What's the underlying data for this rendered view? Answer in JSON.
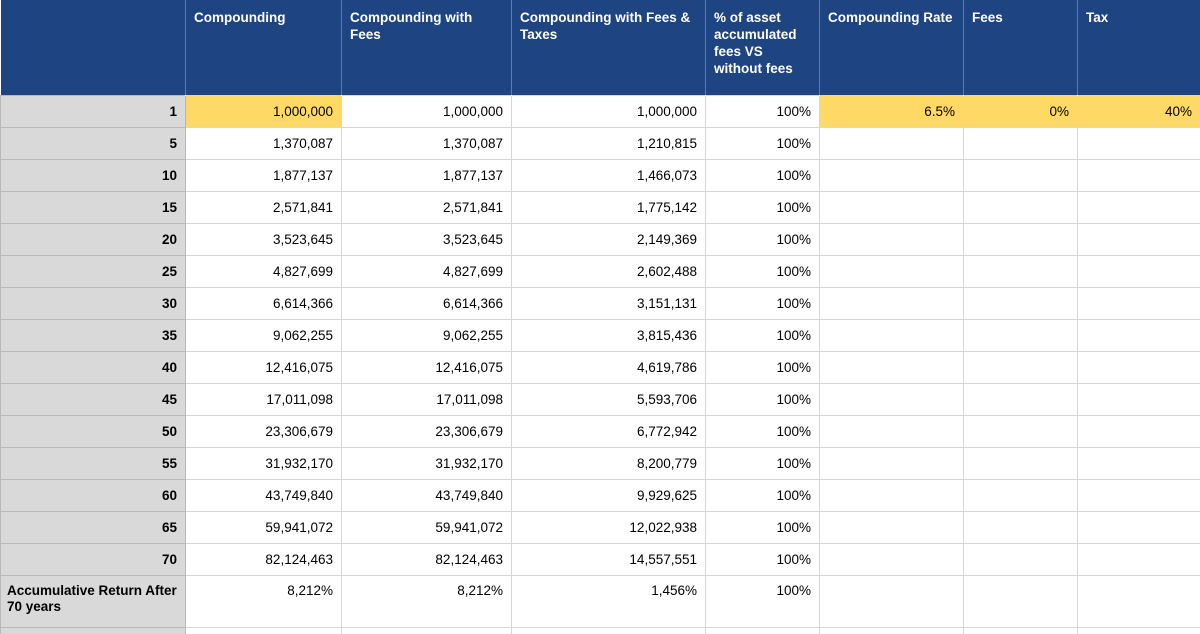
{
  "colors": {
    "header_bg": "#1E4482",
    "header_text": "#FFFFFF",
    "highlight_bg": "#FFD966",
    "row_label_bg": "#D9D9D9",
    "gridline": "#D6D6D6",
    "cell_text": "#000000"
  },
  "table": {
    "columns": [
      {
        "key": "year",
        "label": ""
      },
      {
        "key": "compounding",
        "label": "Compounding"
      },
      {
        "key": "with_fees",
        "label": "Compounding with Fees"
      },
      {
        "key": "with_fees_taxes",
        "label": "Compounding with Fees & Taxes"
      },
      {
        "key": "pct",
        "label": "% of asset accumulated fees VS without fees"
      },
      {
        "key": "rate",
        "label": "Compounding Rate"
      },
      {
        "key": "fees",
        "label": "Fees"
      },
      {
        "key": "tax",
        "label": "Tax"
      }
    ],
    "rows": [
      {
        "year": "1",
        "compounding": "1,000,000",
        "with_fees": "1,000,000",
        "with_fees_taxes": "1,000,000",
        "pct": "100%",
        "rate": "6.5%",
        "fees": "0%",
        "tax": "40%",
        "highlight_keys": [
          "compounding",
          "rate",
          "fees",
          "tax"
        ]
      },
      {
        "year": "5",
        "compounding": "1,370,087",
        "with_fees": "1,370,087",
        "with_fees_taxes": "1,210,815",
        "pct": "100%",
        "rate": "",
        "fees": "",
        "tax": ""
      },
      {
        "year": "10",
        "compounding": "1,877,137",
        "with_fees": "1,877,137",
        "with_fees_taxes": "1,466,073",
        "pct": "100%",
        "rate": "",
        "fees": "",
        "tax": ""
      },
      {
        "year": "15",
        "compounding": "2,571,841",
        "with_fees": "2,571,841",
        "with_fees_taxes": "1,775,142",
        "pct": "100%",
        "rate": "",
        "fees": "",
        "tax": ""
      },
      {
        "year": "20",
        "compounding": "3,523,645",
        "with_fees": "3,523,645",
        "with_fees_taxes": "2,149,369",
        "pct": "100%",
        "rate": "",
        "fees": "",
        "tax": ""
      },
      {
        "year": "25",
        "compounding": "4,827,699",
        "with_fees": "4,827,699",
        "with_fees_taxes": "2,602,488",
        "pct": "100%",
        "rate": "",
        "fees": "",
        "tax": ""
      },
      {
        "year": "30",
        "compounding": "6,614,366",
        "with_fees": "6,614,366",
        "with_fees_taxes": "3,151,131",
        "pct": "100%",
        "rate": "",
        "fees": "",
        "tax": ""
      },
      {
        "year": "35",
        "compounding": "9,062,255",
        "with_fees": "9,062,255",
        "with_fees_taxes": "3,815,436",
        "pct": "100%",
        "rate": "",
        "fees": "",
        "tax": ""
      },
      {
        "year": "40",
        "compounding": "12,416,075",
        "with_fees": "12,416,075",
        "with_fees_taxes": "4,619,786",
        "pct": "100%",
        "rate": "",
        "fees": "",
        "tax": ""
      },
      {
        "year": "45",
        "compounding": "17,011,098",
        "with_fees": "17,011,098",
        "with_fees_taxes": "5,593,706",
        "pct": "100%",
        "rate": "",
        "fees": "",
        "tax": ""
      },
      {
        "year": "50",
        "compounding": "23,306,679",
        "with_fees": "23,306,679",
        "with_fees_taxes": "6,772,942",
        "pct": "100%",
        "rate": "",
        "fees": "",
        "tax": ""
      },
      {
        "year": "55",
        "compounding": "31,932,170",
        "with_fees": "31,932,170",
        "with_fees_taxes": "8,200,779",
        "pct": "100%",
        "rate": "",
        "fees": "",
        "tax": ""
      },
      {
        "year": "60",
        "compounding": "43,749,840",
        "with_fees": "43,749,840",
        "with_fees_taxes": "9,929,625",
        "pct": "100%",
        "rate": "",
        "fees": "",
        "tax": ""
      },
      {
        "year": "65",
        "compounding": "59,941,072",
        "with_fees": "59,941,072",
        "with_fees_taxes": "12,022,938",
        "pct": "100%",
        "rate": "",
        "fees": "",
        "tax": ""
      },
      {
        "year": "70",
        "compounding": "82,124,463",
        "with_fees": "82,124,463",
        "with_fees_taxes": "14,557,551",
        "pct": "100%",
        "rate": "",
        "fees": "",
        "tax": ""
      }
    ],
    "total_row": {
      "year": "Accumulative Return After 70 years",
      "compounding": "8,212%",
      "with_fees": "8,212%",
      "with_fees_taxes": "1,456%",
      "pct": "100%",
      "rate": "",
      "fees": "",
      "tax": ""
    }
  }
}
